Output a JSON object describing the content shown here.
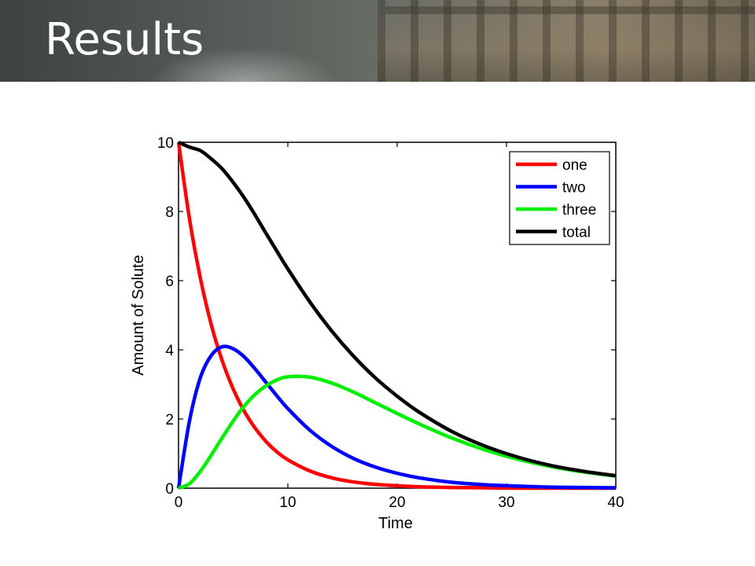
{
  "slide": {
    "title": "Results"
  },
  "chart_data": {
    "type": "line",
    "title": "",
    "xlabel": "Time",
    "ylabel": "Amount of Solute",
    "xlim": [
      0,
      40
    ],
    "ylim": [
      0,
      10
    ],
    "xticks": [
      0,
      10,
      20,
      30,
      40
    ],
    "yticks": [
      0,
      2,
      4,
      6,
      8,
      10
    ],
    "grid": false,
    "legend_position": "top-right",
    "x": [
      0,
      1,
      2,
      3,
      4,
      5,
      6,
      7,
      8,
      9,
      10,
      12,
      14,
      16,
      18,
      20,
      22,
      25,
      28,
      31,
      34,
      37,
      40
    ],
    "series": [
      {
        "name": "one",
        "color": "#ff0000",
        "values": [
          10.0,
          7.79,
          6.07,
          4.72,
          3.68,
          2.87,
          2.23,
          1.74,
          1.35,
          1.05,
          0.82,
          0.5,
          0.3,
          0.18,
          0.11,
          0.07,
          0.04,
          0.02,
          0.01,
          0.0,
          0.0,
          0.0,
          0.0
        ]
      },
      {
        "name": "two",
        "color": "#0000ff",
        "values": [
          0.0,
          1.94,
          3.2,
          3.84,
          4.09,
          4.03,
          3.8,
          3.45,
          3.06,
          2.67,
          2.3,
          1.68,
          1.21,
          0.86,
          0.61,
          0.43,
          0.3,
          0.17,
          0.1,
          0.06,
          0.03,
          0.02,
          0.01
        ]
      },
      {
        "name": "three",
        "color": "#00ee00",
        "values": [
          0.0,
          0.13,
          0.49,
          0.96,
          1.46,
          1.94,
          2.37,
          2.71,
          2.96,
          3.13,
          3.22,
          3.21,
          3.04,
          2.78,
          2.47,
          2.16,
          1.86,
          1.45,
          1.11,
          0.84,
          0.63,
          0.47,
          0.35
        ]
      },
      {
        "name": "total",
        "color": "#000000",
        "values": [
          10.0,
          9.86,
          9.76,
          9.52,
          9.23,
          8.84,
          8.4,
          7.9,
          7.37,
          6.85,
          6.34,
          5.39,
          4.55,
          3.82,
          3.19,
          2.66,
          2.2,
          1.64,
          1.22,
          0.9,
          0.66,
          0.49,
          0.36
        ]
      }
    ]
  }
}
